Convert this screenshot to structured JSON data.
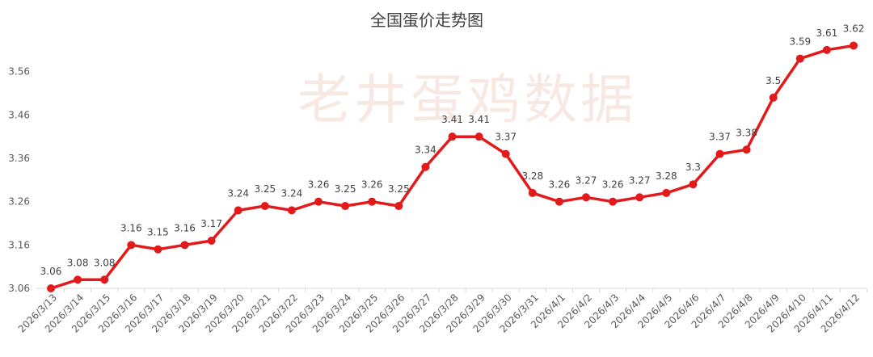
{
  "chart_data": {
    "type": "line",
    "title": "全国蛋价走势图",
    "watermark": "老井蛋鸡数据",
    "xlabel": "",
    "ylabel": "",
    "ylim": [
      3.06,
      3.66
    ],
    "yticks": [
      "3.06",
      "3.16",
      "3.26",
      "3.36",
      "3.46",
      "3.56"
    ],
    "categories": [
      "2026/3/13",
      "2026/3/14",
      "2026/3/15",
      "2026/3/16",
      "2026/3/17",
      "2026/3/18",
      "2026/3/19",
      "2026/3/20",
      "2026/3/21",
      "2026/3/22",
      "2026/3/23",
      "2026/3/24",
      "2026/3/25",
      "2026/3/26",
      "2026/3/27",
      "2026/3/28",
      "2026/3/29",
      "2026/3/30",
      "2026/3/31",
      "2026/4/1",
      "2026/4/2",
      "2026/4/3",
      "2026/4/4",
      "2026/4/5",
      "2026/4/6",
      "2026/4/7",
      "2026/4/8",
      "2026/4/9",
      "2026/4/10",
      "2026/4/11",
      "2026/4/12"
    ],
    "values": [
      3.06,
      3.08,
      3.08,
      3.16,
      3.15,
      3.16,
      3.17,
      3.24,
      3.25,
      3.24,
      3.26,
      3.25,
      3.26,
      3.25,
      3.34,
      3.41,
      3.41,
      3.37,
      3.28,
      3.26,
      3.27,
      3.26,
      3.27,
      3.28,
      3.3,
      3.37,
      3.38,
      3.5,
      3.59,
      3.61,
      3.62
    ],
    "labels": [
      "3.06",
      "3.08",
      "3.08",
      "3.16",
      "3.15",
      "3.16",
      "3.17",
      "3.24",
      "3.25",
      "3.24",
      "3.26",
      "3.25",
      "3.26",
      "3.25",
      "3.34",
      "3.41",
      "3.41",
      "3.37",
      "3.28",
      "3.26",
      "3.27",
      "3.26",
      "3.27",
      "3.28",
      "3.3",
      "3.37",
      "3.38",
      "3.5",
      "3.59",
      "3.61",
      "3.62"
    ],
    "line_color": "#e31a1c",
    "grid": false,
    "legend": "none"
  }
}
